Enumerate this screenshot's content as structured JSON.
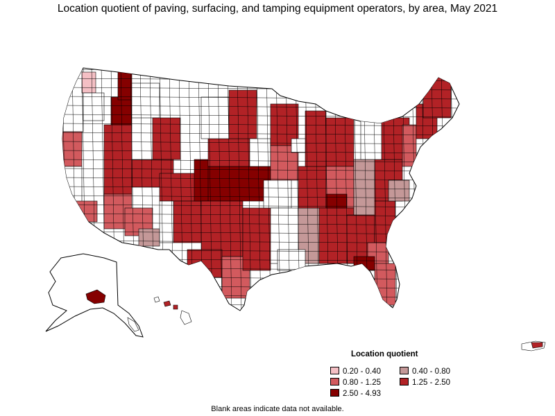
{
  "title": "Location quotient of paving, surfacing, and tamping equipment operators, by area, May 2021",
  "legend": {
    "title": "Location quotient",
    "items": [
      {
        "label": "0.20 - 0.40",
        "color": "#f4bfc4"
      },
      {
        "label": "0.40 - 0.80",
        "color": "#c49898"
      },
      {
        "label": "0.80 - 1.25",
        "color": "#d25a5e"
      },
      {
        "label": "1.25 - 2.50",
        "color": "#b22226"
      },
      {
        "label": "2.50 - 4.93",
        "color": "#850000"
      }
    ]
  },
  "footnote": "Blank areas indicate data not available.",
  "colors": {
    "no_data": "#ffffff",
    "border": "#000000",
    "q020_040": "#f4bfc4",
    "q040_080": "#c49898",
    "q080_125": "#d25a5e",
    "q125_250": "#b22226",
    "q250_493": "#850000"
  }
}
